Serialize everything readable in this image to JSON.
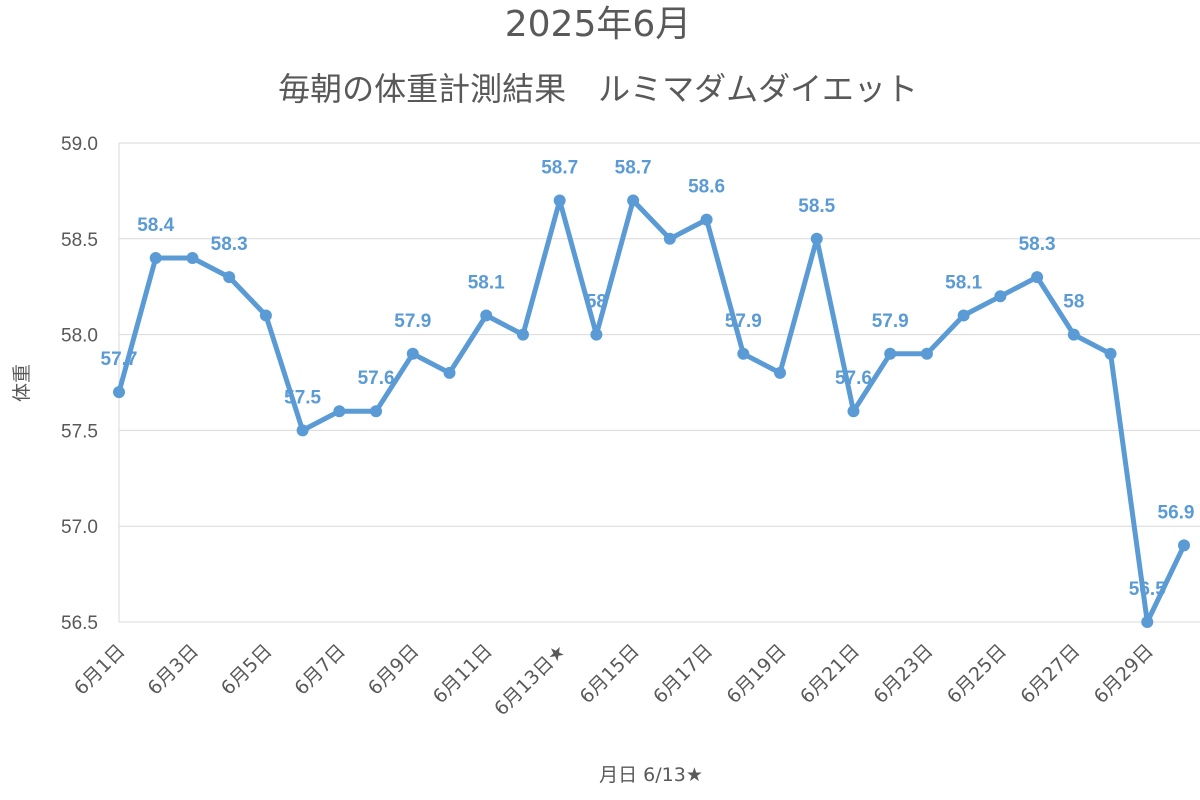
{
  "chart_data": {
    "type": "line",
    "title": "2025年6月",
    "subtitle": "毎朝の体重計測結果　ルミマダムダイエット",
    "xlabel": "月日 6/13★",
    "ylabel": "体重",
    "ylim": [
      56.5,
      59.0
    ],
    "y_ticks": [
      "56.5",
      "57.0",
      "57.5",
      "58.0",
      "58.5",
      "59.0"
    ],
    "grid": true,
    "legend": "none",
    "line_color": "#5b9bd5",
    "categories": [
      "6月1日",
      "6月2日",
      "6月3日",
      "6月4日",
      "6月5日",
      "6月6日",
      "6月7日",
      "6月8日",
      "6月9日",
      "6月10日",
      "6月11日",
      "6月12日",
      "6月13日★",
      "6月14日",
      "6月15日",
      "6月16日",
      "6月17日",
      "6月18日",
      "6月19日",
      "6月20日",
      "6月21日",
      "6月22日",
      "6月23日",
      "6月24日",
      "6月25日",
      "6月26日",
      "6月27日",
      "6月28日",
      "6月29日",
      "6月30日"
    ],
    "x_tick_labels": [
      "6月1日",
      "6月3日",
      "6月5日",
      "6月7日",
      "6月9日",
      "6月11日",
      "6月13日★",
      "6月15日",
      "6月17日",
      "6月19日",
      "6月21日",
      "6月23日",
      "6月25日",
      "6月27日",
      "6月29日"
    ],
    "values": [
      57.7,
      58.4,
      58.4,
      58.3,
      58.1,
      57.5,
      57.6,
      57.6,
      57.9,
      57.8,
      58.1,
      58.0,
      58.7,
      58.0,
      58.7,
      58.5,
      58.6,
      57.9,
      57.8,
      58.5,
      57.6,
      57.9,
      57.9,
      58.1,
      58.2,
      58.3,
      58.0,
      57.9,
      56.5,
      56.9
    ],
    "data_labels": [
      {
        "index": 0,
        "text": "57.7"
      },
      {
        "index": 1,
        "text": "58.4"
      },
      {
        "index": 3,
        "text": "58.3"
      },
      {
        "index": 5,
        "text": "57.5"
      },
      {
        "index": 7,
        "text": "57.6"
      },
      {
        "index": 8,
        "text": "57.9"
      },
      {
        "index": 10,
        "text": "58.1"
      },
      {
        "index": 12,
        "text": "58.7"
      },
      {
        "index": 13,
        "text": "58"
      },
      {
        "index": 14,
        "text": "58.7"
      },
      {
        "index": 16,
        "text": "58.6"
      },
      {
        "index": 17,
        "text": "57.9"
      },
      {
        "index": 19,
        "text": "58.5"
      },
      {
        "index": 20,
        "text": "57.6"
      },
      {
        "index": 21,
        "text": "57.9"
      },
      {
        "index": 23,
        "text": "58.1"
      },
      {
        "index": 25,
        "text": "58.3"
      },
      {
        "index": 26,
        "text": "58"
      },
      {
        "index": 28,
        "text": "56.5"
      },
      {
        "index": 29,
        "text": "56.9"
      }
    ]
  }
}
